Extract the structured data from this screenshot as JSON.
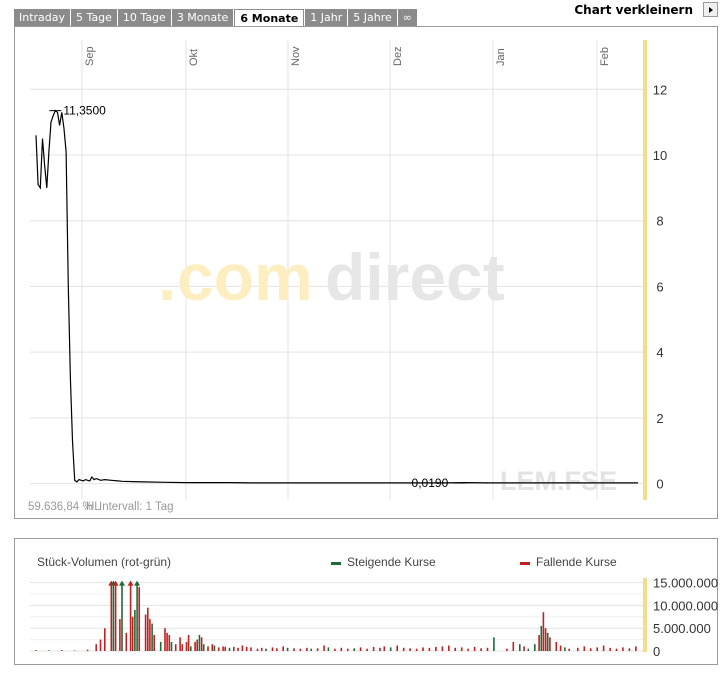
{
  "tabs": [
    {
      "label": "Intraday",
      "active": false
    },
    {
      "label": "5 Tage",
      "active": false
    },
    {
      "label": "10 Tage",
      "active": false
    },
    {
      "label": "3 Monate",
      "active": false
    },
    {
      "label": "6 Monate",
      "active": true
    },
    {
      "label": "1 Jahr",
      "active": false
    },
    {
      "label": "5 Jahre",
      "active": false
    },
    {
      "label": "∞",
      "active": false
    }
  ],
  "shrink_label": "Chart verkleinern",
  "shrink_icon": "triangle-right-icon",
  "price_chart": {
    "watermark": {
      "dot": ".",
      "com": "com",
      "direct": "direct"
    },
    "ticker": "LEM.FSE",
    "footer": "59.636,84 %",
    "footer_2": "HL",
    "footer_3": "Intervall: 1 Tag",
    "high_label": "11,3500",
    "low_label": "0,0190"
  },
  "volume_chart": {
    "title": "Stück-Volumen (rot-grün)",
    "legend_up": "Steigende Kurse",
    "legend_down": "Fallende Kurse"
  },
  "colors": {
    "up": "#1e6b3a",
    "down": "#c0201f",
    "line": "#000000",
    "accent": "#f5dc8a"
  },
  "chart_data": [
    {
      "type": "line",
      "x_ticks": [
        "Sep",
        "Okt",
        "Nov",
        "Dez",
        "Jan",
        "Feb"
      ],
      "y_ticks": [
        0,
        2,
        4,
        6,
        8,
        10,
        12
      ],
      "ylim": [
        -0.5,
        13.5
      ],
      "x": [
        0,
        1,
        2,
        3,
        4,
        5,
        6,
        7,
        8,
        9,
        10,
        11,
        12,
        13,
        14,
        15,
        16,
        17,
        18,
        19,
        20,
        21,
        22,
        23,
        24,
        25,
        26,
        27,
        28,
        29,
        30,
        32,
        35,
        38,
        40,
        45,
        50,
        60,
        70,
        80,
        90,
        100,
        110,
        120,
        130,
        140,
        150,
        160,
        170,
        180,
        190,
        200,
        210,
        220,
        230,
        240,
        250,
        260,
        270,
        280
      ],
      "values": [
        10.6,
        9.1,
        9.0,
        10.5,
        9.7,
        9.0,
        10.1,
        11.0,
        11.2,
        11.35,
        11.3,
        10.9,
        11.3,
        10.8,
        10.1,
        6.0,
        3.2,
        1.3,
        0.1,
        0.05,
        0.12,
        0.1,
        0.08,
        0.12,
        0.1,
        0.08,
        0.2,
        0.12,
        0.15,
        0.13,
        0.1,
        0.12,
        0.1,
        0.08,
        0.07,
        0.06,
        0.05,
        0.04,
        0.03,
        0.03,
        0.03,
        0.02,
        0.02,
        0.02,
        0.02,
        0.02,
        0.02,
        0.02,
        0.019,
        0.02,
        0.02,
        0.03,
        0.02,
        0.02,
        0.02,
        0.02,
        0.02,
        0.02,
        0.02,
        0.02
      ],
      "annotations": [
        {
          "label": "11,3500",
          "x": 9,
          "y": 11.35
        },
        {
          "label": "0,0190",
          "x": 197,
          "y": 0.019
        }
      ]
    },
    {
      "type": "bar",
      "y_ticks": [
        "15.000.000",
        "10.000.000",
        "5.000.000",
        "0"
      ],
      "ylim": [
        0,
        16000000
      ],
      "bars": [
        {
          "x": 0,
          "value": 200000,
          "up": false
        },
        {
          "x": 6,
          "value": 150000,
          "up": true
        },
        {
          "x": 12,
          "value": 200000,
          "up": false
        },
        {
          "x": 18,
          "value": 100000,
          "up": true
        },
        {
          "x": 24,
          "value": 300000,
          "up": false
        },
        {
          "x": 28,
          "value": 1500000,
          "up": false
        },
        {
          "x": 30,
          "value": 2500000,
          "up": false
        },
        {
          "x": 32,
          "value": 5000000,
          "up": false
        },
        {
          "x": 35,
          "value": 15000000,
          "up": false
        },
        {
          "x": 36,
          "value": 15000000,
          "up": true
        },
        {
          "x": 37,
          "value": 15000000,
          "up": false
        },
        {
          "x": 39,
          "value": 7000000,
          "up": false
        },
        {
          "x": 40,
          "value": 15000000,
          "up": true
        },
        {
          "x": 42,
          "value": 4000000,
          "up": false
        },
        {
          "x": 44,
          "value": 15000000,
          "up": false
        },
        {
          "x": 45,
          "value": 7500000,
          "up": false
        },
        {
          "x": 46,
          "value": 9000000,
          "up": true
        },
        {
          "x": 47,
          "value": 15000000,
          "up": true
        },
        {
          "x": 48,
          "value": 14000000,
          "up": false
        },
        {
          "x": 51,
          "value": 8000000,
          "up": false
        },
        {
          "x": 52,
          "value": 9500000,
          "up": false
        },
        {
          "x": 53,
          "value": 7000000,
          "up": false
        },
        {
          "x": 54,
          "value": 6000000,
          "up": true
        },
        {
          "x": 55,
          "value": 3500000,
          "up": false
        },
        {
          "x": 58,
          "value": 2000000,
          "up": true
        },
        {
          "x": 60,
          "value": 5000000,
          "up": false
        },
        {
          "x": 61,
          "value": 4000000,
          "up": false
        },
        {
          "x": 62,
          "value": 3500000,
          "up": false
        },
        {
          "x": 63,
          "value": 2000000,
          "up": true
        },
        {
          "x": 65,
          "value": 1500000,
          "up": false
        },
        {
          "x": 67,
          "value": 3000000,
          "up": false
        },
        {
          "x": 68,
          "value": 1500000,
          "up": false
        },
        {
          "x": 70,
          "value": 2000000,
          "up": false
        },
        {
          "x": 71,
          "value": 3500000,
          "up": false
        },
        {
          "x": 72,
          "value": 1000000,
          "up": true
        },
        {
          "x": 74,
          "value": 2000000,
          "up": false
        },
        {
          "x": 75,
          "value": 2500000,
          "up": false
        },
        {
          "x": 76,
          "value": 3500000,
          "up": true
        },
        {
          "x": 77,
          "value": 3000000,
          "up": false
        },
        {
          "x": 78,
          "value": 1500000,
          "up": true
        },
        {
          "x": 80,
          "value": 1000000,
          "up": false
        },
        {
          "x": 82,
          "value": 1500000,
          "up": false
        },
        {
          "x": 83,
          "value": 1200000,
          "up": true
        },
        {
          "x": 85,
          "value": 800000,
          "up": false
        },
        {
          "x": 87,
          "value": 1000000,
          "up": false
        },
        {
          "x": 88,
          "value": 900000,
          "up": false
        },
        {
          "x": 90,
          "value": 700000,
          "up": true
        },
        {
          "x": 92,
          "value": 900000,
          "up": false
        },
        {
          "x": 94,
          "value": 700000,
          "up": false
        },
        {
          "x": 96,
          "value": 1200000,
          "up": false
        },
        {
          "x": 98,
          "value": 900000,
          "up": false
        },
        {
          "x": 100,
          "value": 800000,
          "up": false
        },
        {
          "x": 103,
          "value": 500000,
          "up": false
        },
        {
          "x": 105,
          "value": 700000,
          "up": false
        },
        {
          "x": 107,
          "value": 500000,
          "up": true
        },
        {
          "x": 110,
          "value": 800000,
          "up": false
        },
        {
          "x": 112,
          "value": 600000,
          "up": false
        },
        {
          "x": 115,
          "value": 1000000,
          "up": false
        },
        {
          "x": 117,
          "value": 700000,
          "up": true
        },
        {
          "x": 120,
          "value": 600000,
          "up": false
        },
        {
          "x": 123,
          "value": 500000,
          "up": false
        },
        {
          "x": 126,
          "value": 700000,
          "up": false
        },
        {
          "x": 128,
          "value": 500000,
          "up": true
        },
        {
          "x": 131,
          "value": 600000,
          "up": false
        },
        {
          "x": 134,
          "value": 1200000,
          "up": false
        },
        {
          "x": 136,
          "value": 800000,
          "up": true
        },
        {
          "x": 139,
          "value": 500000,
          "up": false
        },
        {
          "x": 142,
          "value": 700000,
          "up": false
        },
        {
          "x": 145,
          "value": 500000,
          "up": false
        },
        {
          "x": 148,
          "value": 600000,
          "up": true
        },
        {
          "x": 151,
          "value": 800000,
          "up": false
        },
        {
          "x": 154,
          "value": 500000,
          "up": false
        },
        {
          "x": 157,
          "value": 900000,
          "up": false
        },
        {
          "x": 160,
          "value": 700000,
          "up": false
        },
        {
          "x": 162,
          "value": 1000000,
          "up": false
        },
        {
          "x": 165,
          "value": 800000,
          "up": true
        },
        {
          "x": 168,
          "value": 1200000,
          "up": false
        },
        {
          "x": 171,
          "value": 700000,
          "up": false
        },
        {
          "x": 174,
          "value": 600000,
          "up": false
        },
        {
          "x": 177,
          "value": 500000,
          "up": false
        },
        {
          "x": 180,
          "value": 800000,
          "up": false
        },
        {
          "x": 183,
          "value": 700000,
          "up": false
        },
        {
          "x": 186,
          "value": 900000,
          "up": false
        },
        {
          "x": 189,
          "value": 1000000,
          "up": false
        },
        {
          "x": 192,
          "value": 1200000,
          "up": false
        },
        {
          "x": 195,
          "value": 700000,
          "up": false
        },
        {
          "x": 198,
          "value": 800000,
          "up": false
        },
        {
          "x": 201,
          "value": 500000,
          "up": false
        },
        {
          "x": 204,
          "value": 900000,
          "up": false
        },
        {
          "x": 207,
          "value": 600000,
          "up": false
        },
        {
          "x": 210,
          "value": 700000,
          "up": false
        },
        {
          "x": 213,
          "value": 3000000,
          "up": true
        },
        {
          "x": 219,
          "value": 500000,
          "up": false
        },
        {
          "x": 222,
          "value": 2000000,
          "up": false
        },
        {
          "x": 225,
          "value": 1500000,
          "up": true
        },
        {
          "x": 227,
          "value": 1000000,
          "up": false
        },
        {
          "x": 229,
          "value": 500000,
          "up": true
        },
        {
          "x": 232,
          "value": 1500000,
          "up": true
        },
        {
          "x": 234,
          "value": 3500000,
          "up": false
        },
        {
          "x": 235,
          "value": 5500000,
          "up": true
        },
        {
          "x": 236,
          "value": 8500000,
          "up": false
        },
        {
          "x": 237,
          "value": 5000000,
          "up": false
        },
        {
          "x": 238,
          "value": 4000000,
          "up": true
        },
        {
          "x": 239,
          "value": 3000000,
          "up": false
        },
        {
          "x": 242,
          "value": 2000000,
          "up": false
        },
        {
          "x": 244,
          "value": 1200000,
          "up": false
        },
        {
          "x": 246,
          "value": 800000,
          "up": true
        },
        {
          "x": 248,
          "value": 500000,
          "up": false
        },
        {
          "x": 252,
          "value": 700000,
          "up": false
        },
        {
          "x": 255,
          "value": 1000000,
          "up": false
        },
        {
          "x": 258,
          "value": 600000,
          "up": false
        },
        {
          "x": 261,
          "value": 800000,
          "up": false
        },
        {
          "x": 264,
          "value": 1200000,
          "up": false
        },
        {
          "x": 267,
          "value": 700000,
          "up": false
        },
        {
          "x": 270,
          "value": 500000,
          "up": false
        },
        {
          "x": 273,
          "value": 800000,
          "up": false
        },
        {
          "x": 276,
          "value": 600000,
          "up": false
        },
        {
          "x": 279,
          "value": 1000000,
          "up": false
        }
      ]
    }
  ]
}
